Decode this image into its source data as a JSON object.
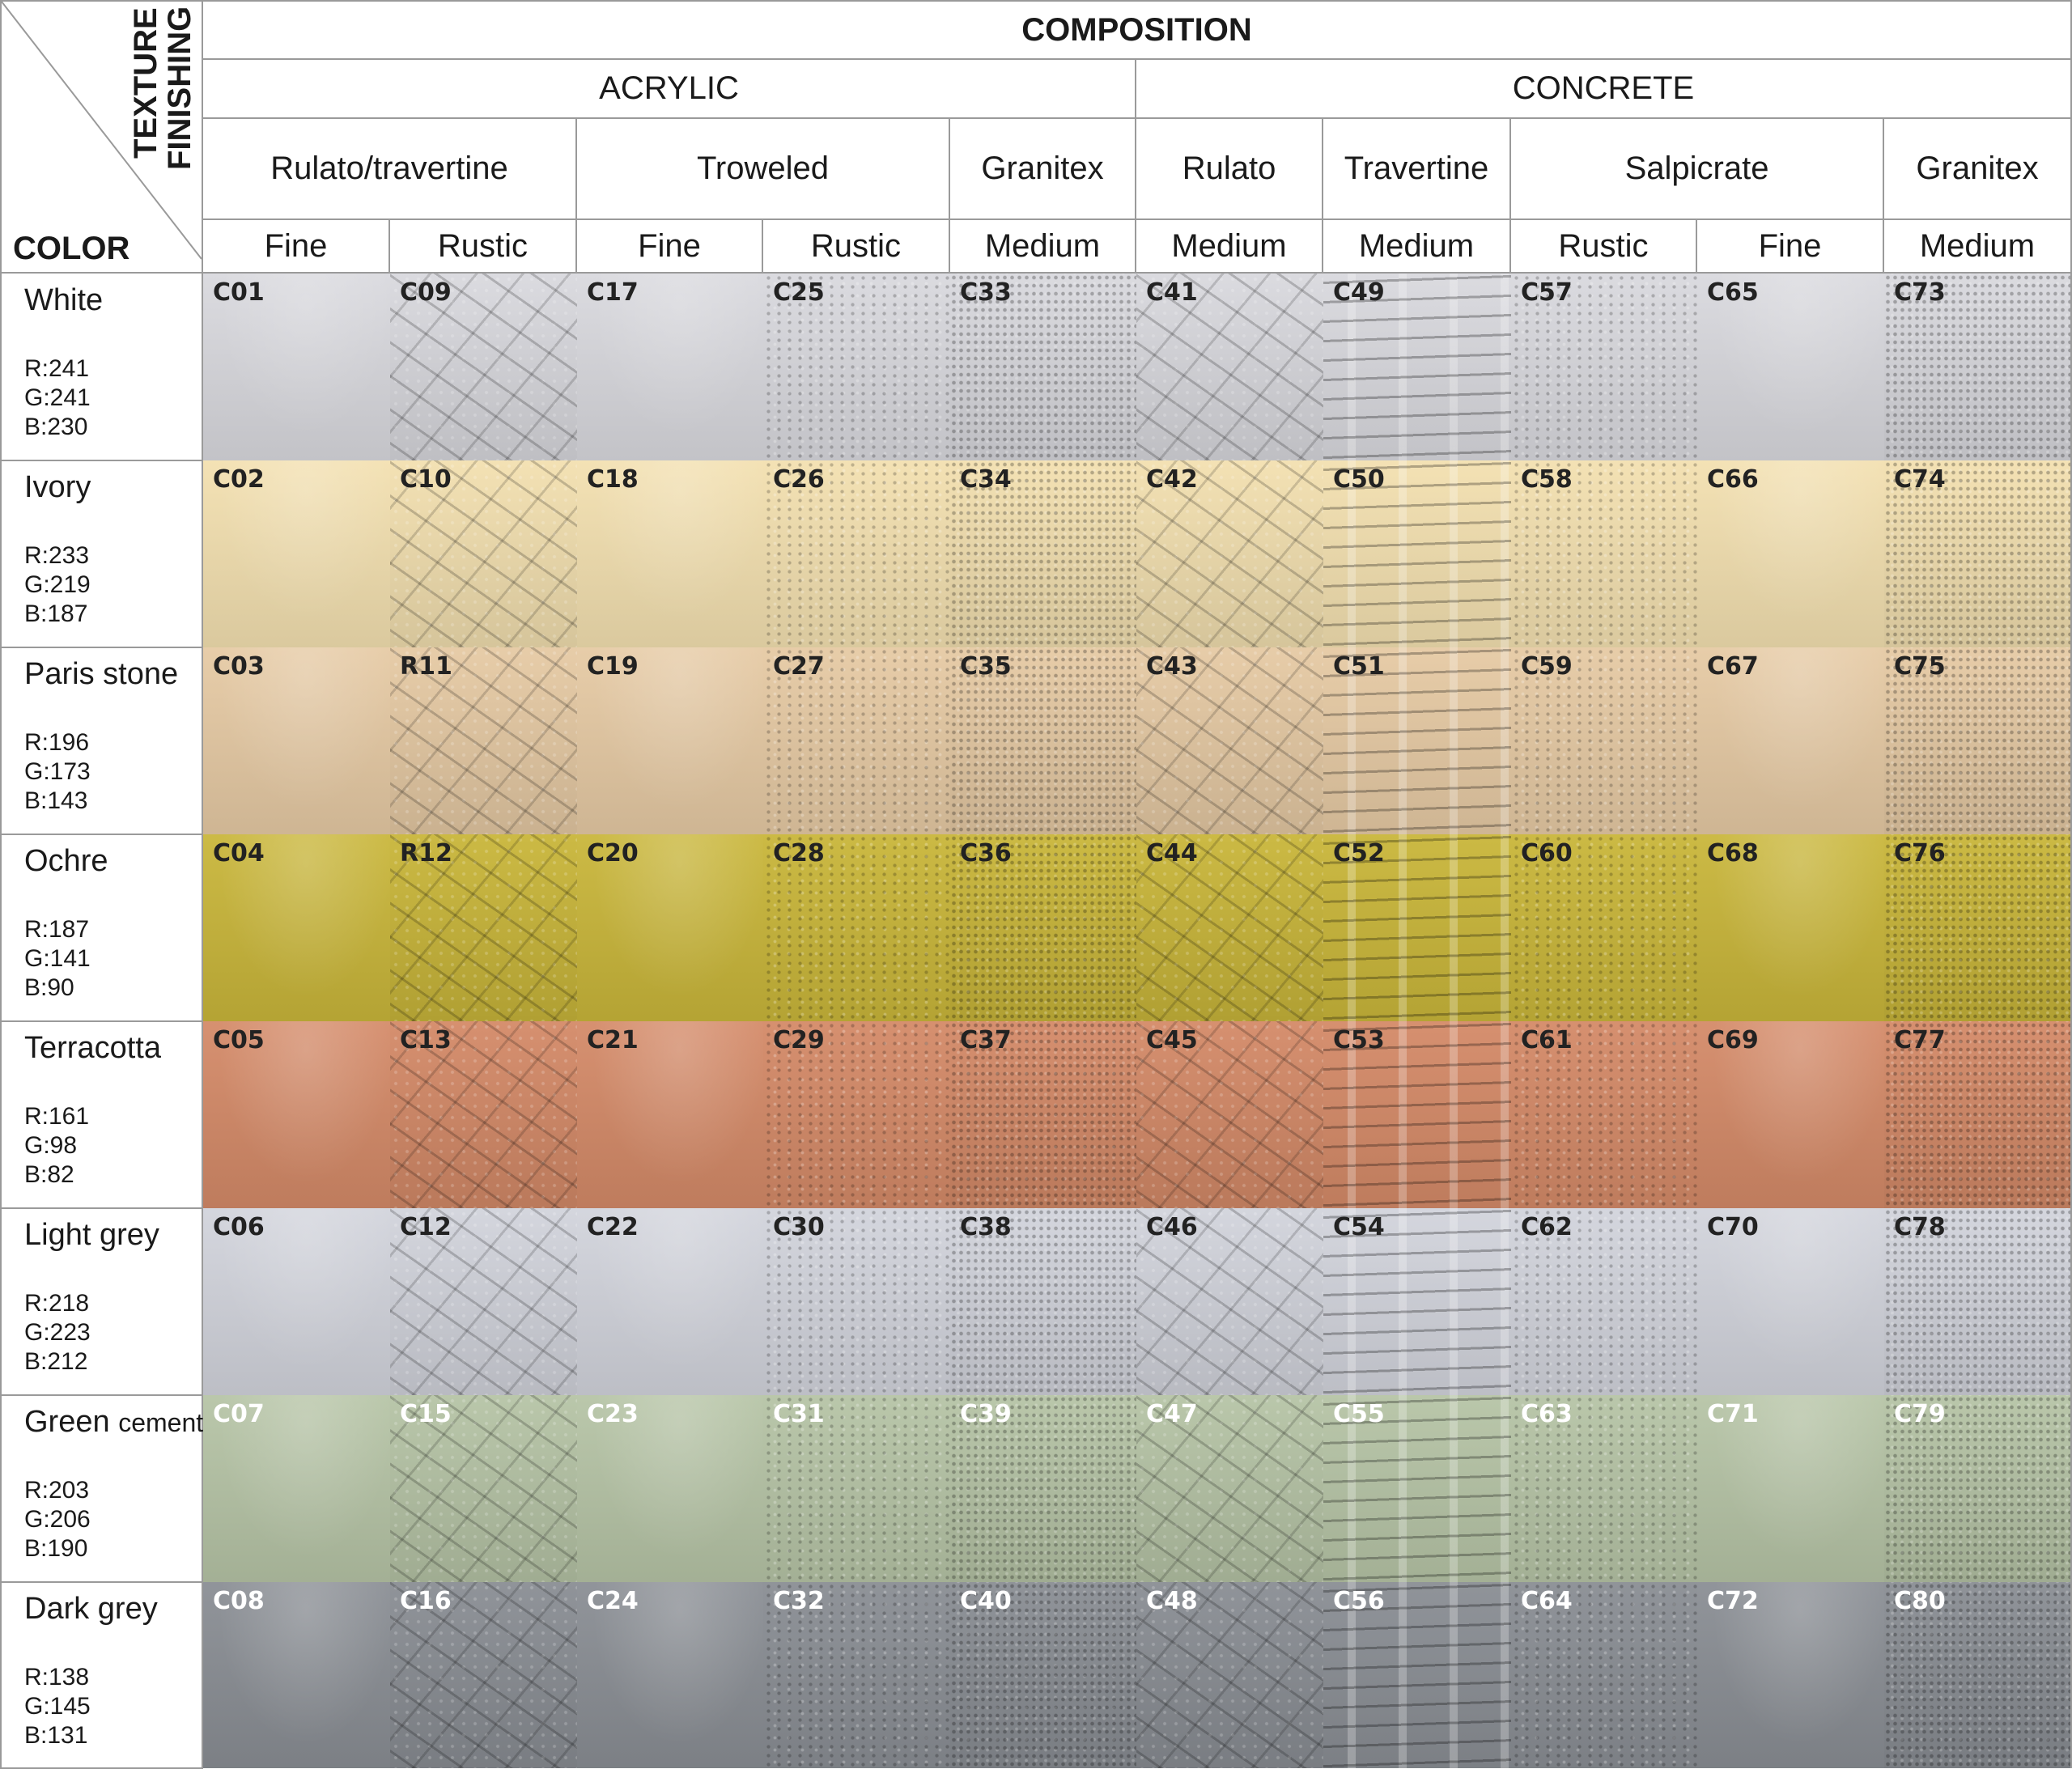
{
  "header": {
    "composition": "COMPOSITION",
    "corner_texture": "TEXTURE",
    "corner_finishing": "FINISHING",
    "corner_color": "COLOR",
    "groups": [
      "ACRYLIC",
      "CONCRETE"
    ],
    "subtypes": [
      "Rulato/travertine",
      "Troweled",
      "Granitex",
      "Rulato",
      "Travertine",
      "Salpicrate",
      "Granitex"
    ],
    "finishings": [
      "Fine",
      "Rustic",
      "Fine",
      "Rustic",
      "Medium",
      "Medium",
      "Medium",
      "Rustic",
      "Fine",
      "Medium"
    ]
  },
  "rows": [
    {
      "name": "White",
      "name_small": "",
      "r": "R:241",
      "g": "G:241",
      "b": "B:230",
      "swatch": "#d9d9de",
      "code_color": "#222222",
      "codes": [
        "C01",
        "C09",
        "C17",
        "C25",
        "C33",
        "C41",
        "C49",
        "C57",
        "C65",
        "C73"
      ]
    },
    {
      "name": "Ivory",
      "name_small": "",
      "r": "R:233",
      "g": "G:219",
      "b": "B:187",
      "swatch": "#f3e0b0",
      "code_color": "#222222",
      "codes": [
        "C02",
        "C10",
        "C18",
        "C26",
        "C34",
        "C42",
        "C50",
        "C58",
        "C66",
        "C74"
      ]
    },
    {
      "name": "Paris stone",
      "name_small": "",
      "r": "R:196",
      "g": "G:173",
      "b": "B:143",
      "swatch": "#e6caa4",
      "code_color": "#222222",
      "codes": [
        "C03",
        "R11",
        "C19",
        "C27",
        "C35",
        "C43",
        "C51",
        "C59",
        "C67",
        "C75"
      ]
    },
    {
      "name": "Ochre",
      "name_small": "",
      "r": "R:187",
      "g": "G:141",
      "b": "B:90",
      "swatch": "#c9b63a",
      "code_color": "#222222",
      "codes": [
        "C04",
        "R12",
        "C20",
        "C28",
        "C36",
        "C44",
        "C52",
        "C60",
        "C68",
        "C76"
      ]
    },
    {
      "name": "Terracotta",
      "name_small": "",
      "r": "R:161",
      "g": "G:98",
      "b": "B:82",
      "swatch": "#d48a68",
      "code_color": "#222222",
      "codes": [
        "C05",
        "C13",
        "C21",
        "C29",
        "C37",
        "C45",
        "C53",
        "C61",
        "C69",
        "C77"
      ]
    },
    {
      "name": "Light grey",
      "name_small": "",
      "r": "R:218",
      "g": "G:223",
      "b": "B:212",
      "swatch": "#d2d4dc",
      "code_color": "#222222",
      "codes": [
        "C06",
        "C12",
        "C22",
        "C30",
        "C38",
        "C46",
        "C54",
        "C62",
        "C70",
        "C78"
      ]
    },
    {
      "name": "Green",
      "name_small": "cement",
      "r": "R:203",
      "g": "G:206",
      "b": "B:190",
      "swatch": "#b6c4a6",
      "code_color": "#ffffff",
      "codes": [
        "C07",
        "C15",
        "C23",
        "C31",
        "C39",
        "C47",
        "C55",
        "C63",
        "C71",
        "C79"
      ]
    },
    {
      "name": "Dark grey",
      "name_small": "",
      "r": "R:138",
      "g": "G:145",
      "b": "B:131",
      "swatch": "#8a8e94",
      "code_color": "#ffffff",
      "codes": [
        "C08",
        "C16",
        "C24",
        "C32",
        "C40",
        "C48",
        "C56",
        "C64",
        "C72",
        "C80"
      ]
    }
  ],
  "column_textures": [
    "fine",
    "rulato",
    "fine",
    "rustic",
    "medium",
    "rulato",
    "trav",
    "rustic",
    "fine",
    "medium"
  ]
}
